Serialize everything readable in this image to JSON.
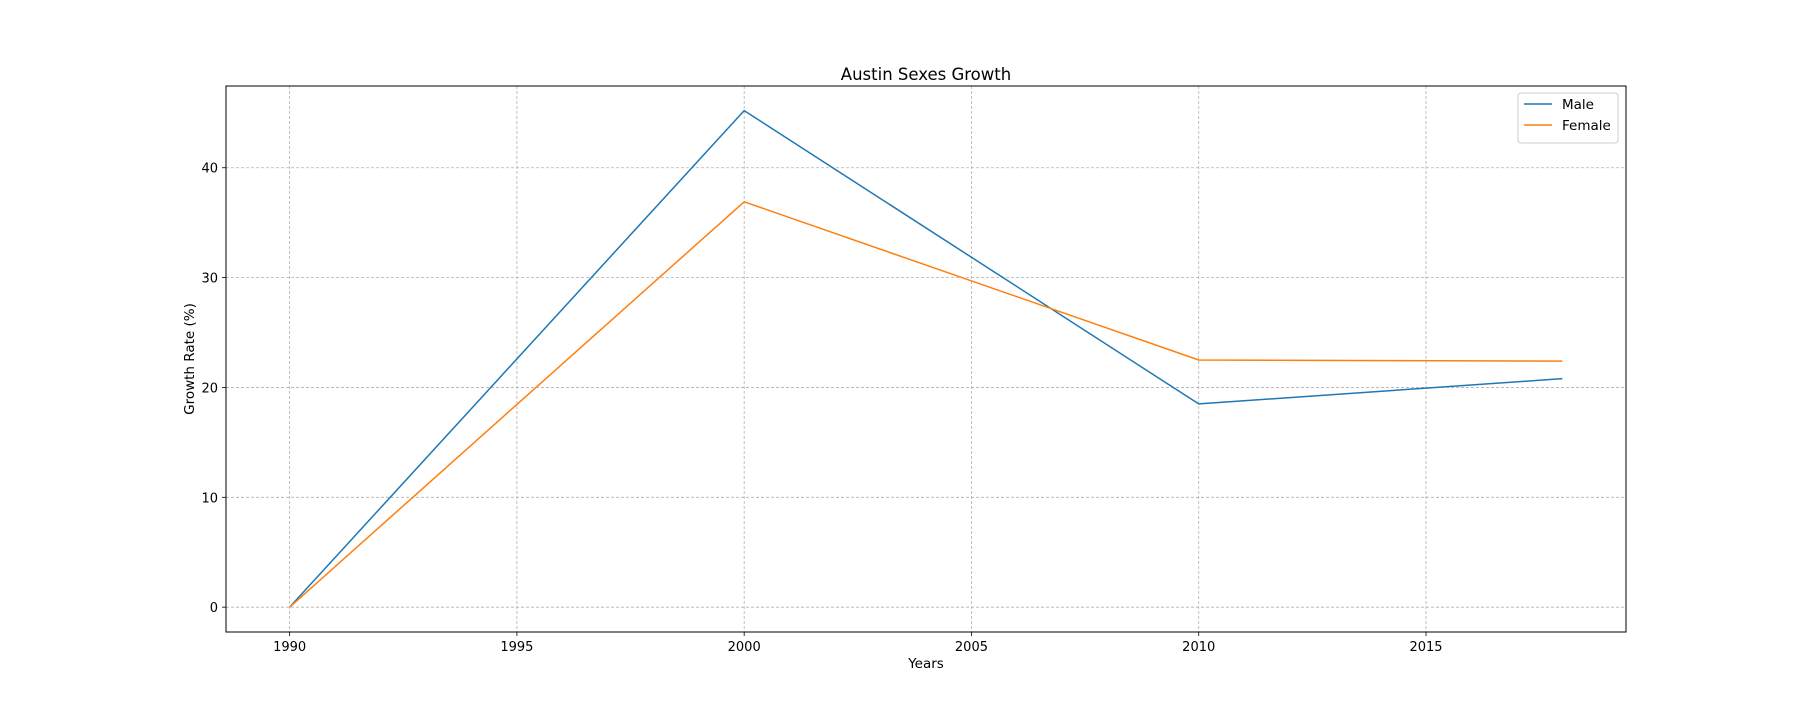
{
  "chart_data": {
    "type": "line",
    "title": "Austin Sexes Growth",
    "xlabel": "Years",
    "ylabel": "Growth Rate (%)",
    "x": [
      1990,
      2000,
      2010,
      2018
    ],
    "xlim": [
      1988.6,
      2019.4
    ],
    "ylim": [
      -2.26,
      47.44
    ],
    "x_ticks": [
      1990,
      1995,
      2000,
      2005,
      2010,
      2015
    ],
    "y_ticks": [
      0,
      10,
      20,
      30,
      40
    ],
    "grid": true,
    "legend_position": "top-right",
    "series": [
      {
        "name": "Male",
        "color": "#1f77b4",
        "values": [
          0,
          45.2,
          18.5,
          20.8
        ]
      },
      {
        "name": "Female",
        "color": "#ff7f0e",
        "values": [
          0,
          36.9,
          22.5,
          22.4
        ]
      }
    ]
  }
}
